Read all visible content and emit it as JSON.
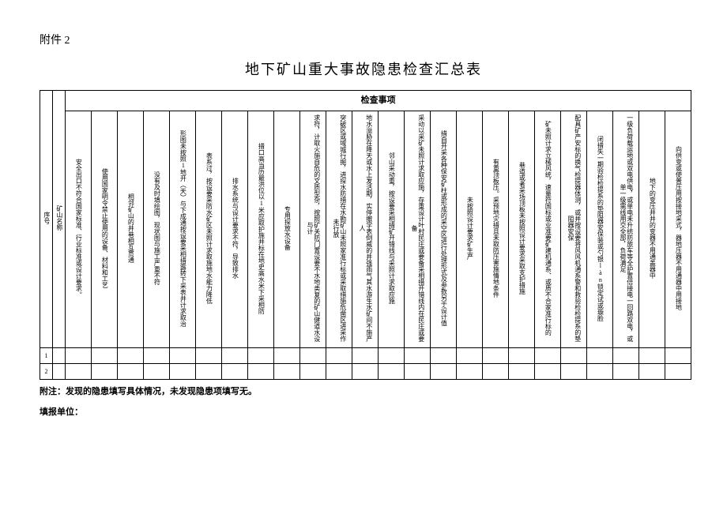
{
  "attachment_label": "附件 2",
  "title": "地下矿山重大事故隐患检查汇总表",
  "group_header": "检查事项",
  "col_seq": "序号",
  "col_name": "矿山名称",
  "items": [
    "安全出口不符合国家标准、行业标准或设计要求。",
    "使用国家明令禁止使用的设备、材料和工艺",
    "相邻矿山的井巷相互贯通",
    "没有及时填绘图，现状图与施工严重不符",
    "形图未按照1地开（天）与下成通按设要采相措露转下采表井计求取治",
    "表系过，按设要采防水矿区未照计求取施地水能力降低",
    "排水系统与设计要求不符，导致排水",
    "措口高当历最洪位以1米应取护施并标在地史高水米下采相防",
    "专用探放水设备",
    "求符，计取火施自危的文质型杂，按照矿关防门置设要不水地类复的矿山健道水设与计",
    "突破区或域城行掘，进探水防措在水勘矿山未照家准行标或采取措施危凿区进采作未行放",
    "地水溢胁在降天或水上发活期，实停撤学表倒威的井强雨气其水游生水矿间不施产人",
    "邻山采动重，按设要采相措矿开错线与采照计求取应施",
    "采动以采矿未照计求取应施，存重设计叶村民庄或要备采相措开错线内在民庄或要备",
    "措自开采各种保安矿柱或形成的采空区进行处理形式及参数另于设计值",
    "未按照设计要求矿生产",
    "有重顶板压。采预地灾措且未取防压害施情地条件",
    "巷道或者采场顶板未按照设计要求采取支护措施",
    "矿未照计求立械风统，速量符国标或业准要矿建机通系、或质不合家准行标的",
    "配具矿产安标的换气检提器体测，或并按设要将风风机通系警和救验检检提系的垫阻器安保",
    "闭措失一期验检检提系的垫阻器安保装或勺银làn锁定试或璇脸",
    "一级负荷载运地或双电供电，或单电未升统防旅车等全护置倍接电一回路双电，或单一级需线用交全部，负荷满足",
    "地下的变压井井的变器不用通盖器中",
    "向供变或使普压用按接地采式，器地压器不用通器中用接地"
  ],
  "rows": [
    "1",
    "2"
  ],
  "footnote": "附注：发现的隐患填写具体情况，未发现隐患项填写无。",
  "filler": "填报单位："
}
